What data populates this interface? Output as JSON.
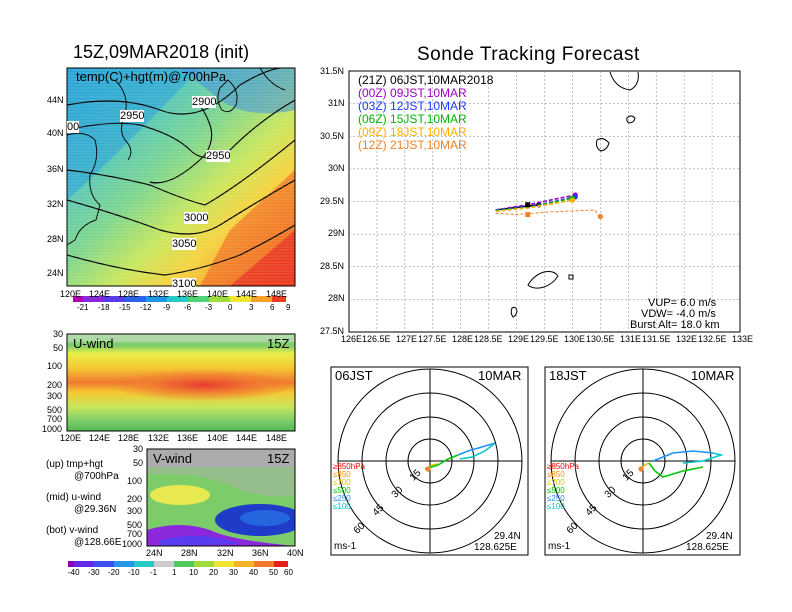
{
  "left": {
    "title": "15Z,09MAR2018 (init)",
    "map": {
      "label": "temp(C)+hgt(m)@700hPa",
      "lat_ticks": [
        "44N",
        "40N",
        "36N",
        "32N",
        "28N",
        "24N"
      ],
      "lon_ticks": [
        "120E",
        "124E",
        "128E",
        "132E",
        "136E",
        "140E",
        "144E",
        "148E"
      ],
      "contours": [
        "2900",
        "2950",
        "2950",
        "3000",
        "3050",
        "3100"
      ],
      "contour_cut": "00",
      "colorbar_ticks": [
        "-21",
        "-18",
        "-15",
        "-12",
        "-9",
        "-6",
        "-3",
        "0",
        "3",
        "6",
        "9"
      ]
    },
    "uwind": {
      "label": "U-wind",
      "time": "15Z",
      "p_ticks": [
        "30",
        "50",
        "100",
        "200",
        "300",
        "500",
        "700",
        "1000"
      ],
      "lon_ticks": [
        "120E",
        "124E",
        "128E",
        "132E",
        "136E",
        "140E",
        "144E",
        "148E"
      ]
    },
    "vwind": {
      "label": "V-wind",
      "time": "15Z",
      "p_ticks": [
        "30",
        "50",
        "100",
        "200",
        "300",
        "500",
        "700",
        "1000"
      ],
      "lat_ticks": [
        "24N",
        "28N",
        "32N",
        "36N",
        "40N"
      ]
    },
    "notes": [
      {
        "a": "(up) tmp+hgt",
        "b": "@700hPa"
      },
      {
        "a": "(mid) u-wind",
        "b": "@29.36N"
      },
      {
        "a": "(bot) v-wind",
        "b": "@128.66E"
      }
    ],
    "wind_colorbar_ticks": [
      "-40",
      "-30",
      "-20",
      "-10",
      "-1",
      "1",
      "10",
      "20",
      "30",
      "40",
      "50",
      "60"
    ]
  },
  "right": {
    "title": "Sonde Tracking Forecast",
    "lat_ticks": [
      "31.5N",
      "31N",
      "30.5N",
      "30N",
      "29.5N",
      "29N",
      "28.5N",
      "28N",
      "27.5N"
    ],
    "lon_ticks": [
      "126E",
      "126.5E",
      "127E",
      "127.5E",
      "128E",
      "128.5E",
      "129E",
      "129.5E",
      "130E",
      "130.5E",
      "131E",
      "131.5E",
      "132E",
      "132.5E",
      "133E"
    ],
    "legend": [
      {
        "z": "(21Z)",
        "text": "06JST,10MAR2018",
        "color": "#000000"
      },
      {
        "z": "(00Z)",
        "text": "09JST,10MAR",
        "color": "#a000c8"
      },
      {
        "z": "(03Z)",
        "text": "12JST,10MAR",
        "color": "#1e3cff"
      },
      {
        "z": "(06Z)",
        "text": "15JST,10MAR",
        "color": "#00b400"
      },
      {
        "z": "(09Z)",
        "text": "18JST,10MAR",
        "color": "#ffaf00"
      },
      {
        "z": "(12Z)",
        "text": "21JST,10MAR",
        "color": "#f08228"
      }
    ],
    "stats": [
      "VUP= 6.0 m/s",
      "VDW= -4.0 m/s",
      "Burst Alt= 18.0 km"
    ]
  },
  "polars": [
    {
      "time": "06JST",
      "date": "10MAR",
      "ring_labels": [
        "15",
        "30",
        "45",
        "60"
      ],
      "unit": "ms-1",
      "lat": "29.4N",
      "lon": "128.625E",
      "levels": [
        {
          "t": "≥850hPa",
          "c": "#ff0000"
        },
        {
          "t": "≤850",
          "c": "#ff8c00"
        },
        {
          "t": "≤700",
          "c": "#e6c800"
        },
        {
          "t": "≤500",
          "c": "#00c800"
        },
        {
          "t": "≤250",
          "c": "#1e90ff"
        },
        {
          "t": "≤100",
          "c": "#00c8c8"
        }
      ]
    },
    {
      "time": "18JST",
      "date": "10MAR",
      "ring_labels": [
        "15",
        "30",
        "45",
        "60"
      ],
      "unit": "ms-1",
      "lat": "29.4N",
      "lon": "128.625E",
      "levels": [
        {
          "t": "≥850hPa",
          "c": "#ff0000"
        },
        {
          "t": "≤850",
          "c": "#ff8c00"
        },
        {
          "t": "≤700",
          "c": "#e6c800"
        },
        {
          "t": "≤500",
          "c": "#00c800"
        },
        {
          "t": "≤250",
          "c": "#1e90ff"
        },
        {
          "t": "≤100",
          "c": "#00c8c8"
        }
      ]
    }
  ],
  "chart_data": [
    {
      "type": "heatmap",
      "title": "15Z,09MAR2018 (init)",
      "description": "700hPa temperature (C) shaded with geopotential height (m) contours",
      "xlim": [
        120,
        150
      ],
      "ylim": [
        22,
        48
      ],
      "contour_values": [
        2900,
        2950,
        3000,
        3050,
        3100
      ],
      "color_levels": [
        -21,
        -18,
        -15,
        -12,
        -9,
        -6,
        -3,
        0,
        3,
        6,
        9
      ]
    },
    {
      "type": "heatmap",
      "title": "U-wind",
      "xlim": [
        120,
        150
      ],
      "ylim": [
        1000,
        30
      ],
      "x_ticks": [
        120,
        124,
        128,
        132,
        136,
        140,
        144,
        148
      ],
      "y_ticks": [
        30,
        50,
        100,
        200,
        300,
        500,
        700,
        1000
      ]
    },
    {
      "type": "heatmap",
      "title": "V-wind",
      "xlim": [
        23,
        40
      ],
      "ylim": [
        1000,
        30
      ],
      "x_ticks": [
        24,
        28,
        32,
        36,
        40
      ],
      "y_ticks": [
        30,
        50,
        100,
        200,
        300,
        500,
        700,
        1000
      ],
      "color_levels": [
        -40,
        -30,
        -20,
        -10,
        -1,
        1,
        10,
        20,
        30,
        40,
        50,
        60
      ]
    },
    {
      "type": "line",
      "title": "Sonde Tracking Forecast",
      "xlim": [
        126,
        133
      ],
      "ylim": [
        27.5,
        31.5
      ],
      "series": [
        {
          "name": "06JST,10MAR2018",
          "x": [
            128.625,
            129.4
          ],
          "y": [
            29.37,
            29.45
          ]
        },
        {
          "name": "09JST,10MAR",
          "x": [
            128.625,
            129.2,
            130.05
          ],
          "y": [
            29.37,
            29.45,
            29.6
          ]
        },
        {
          "name": "12JST,10MAR",
          "x": [
            128.625,
            129.3,
            130.05
          ],
          "y": [
            29.37,
            29.43,
            29.57
          ]
        },
        {
          "name": "15JST,10MAR",
          "x": [
            128.625,
            129.3,
            130.0
          ],
          "y": [
            29.36,
            29.42,
            29.55
          ]
        },
        {
          "name": "18JST,10MAR",
          "x": [
            128.625,
            129.2,
            130.0
          ],
          "y": [
            29.35,
            29.4,
            29.52
          ]
        },
        {
          "name": "21JST,10MAR",
          "x": [
            128.625,
            129.0,
            129.6,
            130.4,
            130.5
          ],
          "y": [
            29.32,
            29.3,
            29.34,
            29.37,
            29.27
          ]
        }
      ]
    },
    {
      "type": "line",
      "title": "06JST 10MAR hodograph",
      "rings": [
        15,
        30,
        45,
        60
      ],
      "units": "m/s"
    },
    {
      "type": "line",
      "title": "18JST 10MAR hodograph",
      "rings": [
        15,
        30,
        45,
        60
      ],
      "units": "m/s"
    }
  ]
}
